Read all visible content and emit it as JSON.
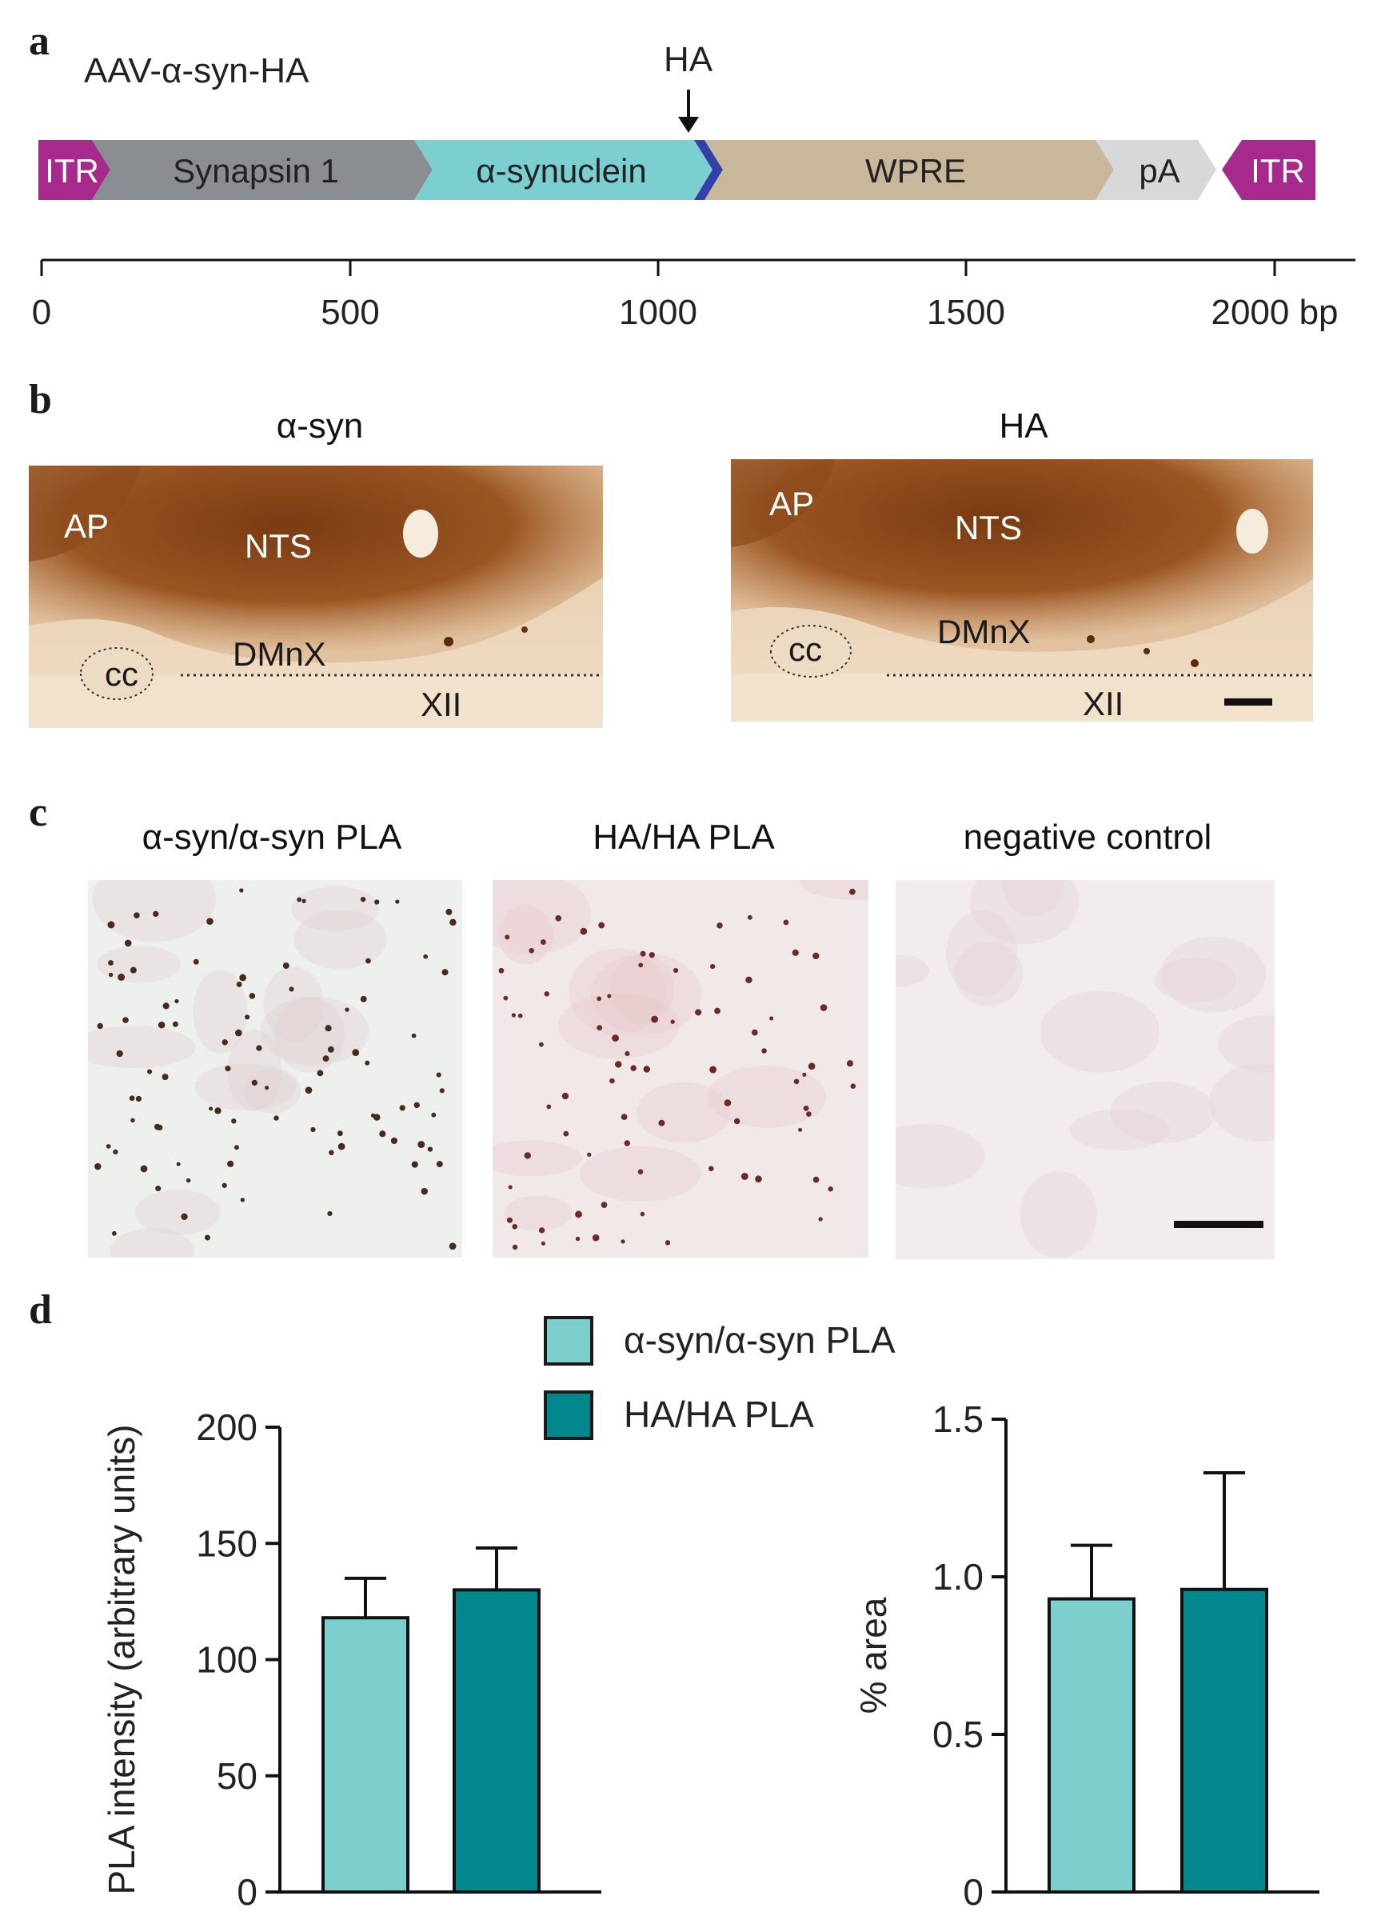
{
  "panel_a": {
    "letter": "a",
    "construct_name": "AAV-α-syn-HA",
    "tag_marker": "HA",
    "segments": [
      {
        "label": "ITR",
        "color": "#a62a8c"
      },
      {
        "label": "Synapsin 1",
        "color": "#8a8d92"
      },
      {
        "label": "α-synuclein",
        "color": "#7ccfd0"
      },
      {
        "label": "",
        "color": "#3340a8"
      },
      {
        "label": "WPRE",
        "color": "#c8b79a"
      },
      {
        "label": "pA",
        "color": "#d7d8da"
      },
      {
        "label": "ITR",
        "color": "#a62a8c"
      }
    ],
    "scale_ticks": [
      "0",
      "500",
      "1000",
      "1500",
      "2000 bp"
    ]
  },
  "panel_b": {
    "letter": "b",
    "left_title": "α-syn",
    "right_title": "HA",
    "regions": {
      "ap": "AP",
      "nts": "NTS",
      "dmnx": "DMnX",
      "cc": "cc",
      "xii": "XII"
    }
  },
  "panel_c": {
    "letter": "c",
    "titles": [
      "α-syn/α-syn PLA",
      "HA/HA PLA",
      "negative control"
    ]
  },
  "panel_d": {
    "letter": "d",
    "legend": [
      {
        "label": "α-syn/α-syn PLA",
        "color": "#7ccfcc"
      },
      {
        "label": "HA/HA PLA",
        "color": "#00868d"
      }
    ]
  },
  "chart_data": [
    {
      "type": "bar",
      "categories": [
        "α-syn/α-syn PLA",
        "HA/HA PLA"
      ],
      "values": [
        118,
        130
      ],
      "errors": [
        17,
        18
      ],
      "ylabel": "PLA intensity (arbitrary units)",
      "ylim": [
        0,
        200
      ],
      "yticks": [
        "0",
        "50",
        "100",
        "150",
        "200"
      ],
      "colors": [
        "#7ccfcc",
        "#00868d"
      ]
    },
    {
      "type": "bar",
      "categories": [
        "α-syn/α-syn PLA",
        "HA/HA PLA"
      ],
      "values": [
        0.93,
        0.96
      ],
      "errors": [
        0.17,
        0.37
      ],
      "ylabel": "% area",
      "ylim": [
        0,
        1.5
      ],
      "yticks": [
        "0",
        "0.5",
        "1.0",
        "1.5"
      ],
      "colors": [
        "#7ccfcc",
        "#00868d"
      ]
    }
  ]
}
